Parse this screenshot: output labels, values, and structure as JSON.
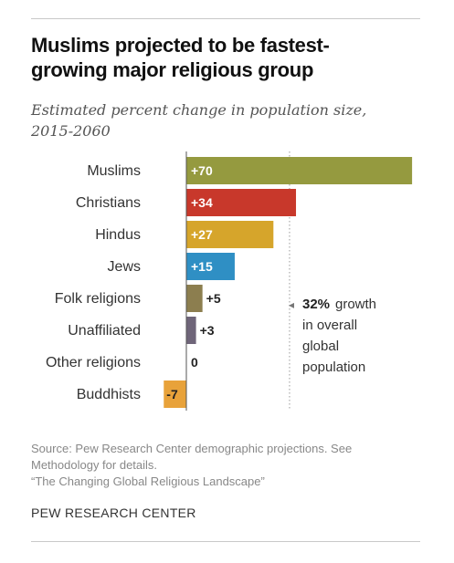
{
  "header": {
    "title_line1": "Muslims projected to be fastest-",
    "title_line2": "growing major religious group",
    "subtitle_line1": "Estimated percent change in population size,",
    "subtitle_line2": "2015-2060"
  },
  "chart_data": {
    "type": "bar",
    "orientation": "horizontal",
    "categories": [
      "Muslims",
      "Christians",
      "Hindus",
      "Jews",
      "Folk religions",
      "Unaffiliated",
      "Other religions",
      "Buddhists"
    ],
    "values": [
      70,
      34,
      27,
      15,
      5,
      3,
      0,
      -7
    ],
    "value_labels": [
      "+70",
      "+34",
      "+27",
      "+15",
      "+5",
      "+3",
      "0",
      "-7"
    ],
    "colors": [
      "#959a3f",
      "#c8382b",
      "#d6a52b",
      "#2f8fc4",
      "#8c7e4f",
      "#6f6579",
      "#999999",
      "#e8a23a"
    ],
    "reference_line": {
      "value": 32,
      "label_prefix": "◂",
      "label_value": "32%",
      "label_rest": " growth",
      "label_lines": [
        "in overall",
        "global",
        "population"
      ]
    },
    "xlim": [
      -7,
      70
    ],
    "grid": false,
    "legend": "none"
  },
  "footer": {
    "source_line1": "Source: Pew Research Center demographic projections. See",
    "source_line2": "Methodology for details.",
    "source_line3": "“The Changing Global Religious Landscape”",
    "org": "PEW RESEARCH CENTER"
  }
}
